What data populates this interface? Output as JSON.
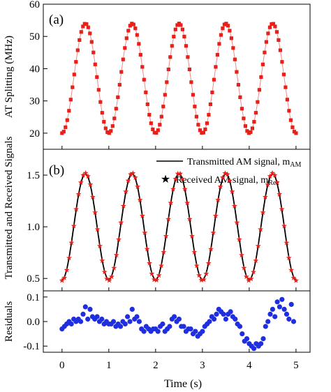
{
  "figure": {
    "x_label": "Time (s)",
    "x_ticks": [
      0,
      1,
      2,
      3,
      4,
      5
    ],
    "x_range": [
      -0.4,
      5.3
    ]
  },
  "chart_data": [
    {
      "type": "scatter",
      "panel_label": "(a)",
      "ylabel": "AT Splitting (MHz)",
      "ylim": [
        15,
        60
      ],
      "yticks": [
        20,
        30,
        40,
        50,
        60
      ],
      "grid": false,
      "marker_color": "#e8201a",
      "line_color": "#f08a86",
      "series": [
        {
          "marker": "square",
          "connected": true,
          "model": "cosine",
          "offset": 37.0,
          "amplitude": 17.0,
          "frequency_hz": 1.0,
          "t_start": 0.0,
          "t_end": 5.0,
          "n_points": 135
        }
      ]
    },
    {
      "type": "line",
      "panel_label": "(b)",
      "ylabel": "Transmitted and Received Signals",
      "ylim": [
        0.38,
        1.75
      ],
      "yticks": [
        0.5,
        1.0,
        1.5
      ],
      "yticklabels": [
        "0.5",
        "1.0",
        "1.5"
      ],
      "grid": false,
      "legend_placement": "top-right",
      "series": [
        {
          "name": "Transmitted AM signal, m",
          "name_sub": "AM",
          "style": "solid-line",
          "color": "#000000",
          "model": "cosine",
          "offset": 1.0,
          "amplitude": 0.51,
          "frequency_hz": 1.0,
          "t_start": 0.0,
          "t_end": 5.0
        },
        {
          "name": "Received AM signal, m",
          "name_sub": "Rec",
          "style": "star-marker",
          "color": "#e8201a",
          "model": "cosine",
          "offset": 1.0,
          "amplitude": 0.52,
          "frequency_hz": 1.0,
          "t_start": 0.0,
          "t_end": 5.0,
          "n_points": 100
        }
      ]
    },
    {
      "type": "scatter",
      "ylabel": "Residuals",
      "ylim": [
        -0.125,
        0.125
      ],
      "yticks": [
        -0.1,
        0.0,
        0.1
      ],
      "yticklabels": [
        "-0.1",
        "0.0",
        "0.1"
      ],
      "grid": false,
      "marker_color": "#1f2fe0",
      "series": [
        {
          "marker": "circle",
          "x": [
            0.0,
            0.05,
            0.1,
            0.15,
            0.2,
            0.25,
            0.3,
            0.35,
            0.4,
            0.45,
            0.5,
            0.55,
            0.6,
            0.65,
            0.7,
            0.75,
            0.8,
            0.85,
            0.9,
            0.95,
            1.0,
            1.05,
            1.1,
            1.15,
            1.2,
            1.25,
            1.3,
            1.35,
            1.4,
            1.45,
            1.5,
            1.55,
            1.6,
            1.65,
            1.7,
            1.75,
            1.8,
            1.85,
            1.9,
            1.95,
            2.0,
            2.05,
            2.1,
            2.15,
            2.2,
            2.25,
            2.3,
            2.35,
            2.4,
            2.45,
            2.5,
            2.55,
            2.6,
            2.65,
            2.7,
            2.75,
            2.8,
            2.85,
            2.9,
            2.95,
            3.0,
            3.05,
            3.1,
            3.15,
            3.2,
            3.25,
            3.3,
            3.35,
            3.4,
            3.45,
            3.5,
            3.55,
            3.6,
            3.65,
            3.7,
            3.75,
            3.8,
            3.85,
            3.9,
            3.95,
            4.0,
            4.05,
            4.1,
            4.15,
            4.2,
            4.25,
            4.3,
            4.35,
            4.4,
            4.45,
            4.5,
            4.55,
            4.6,
            4.65,
            4.7,
            4.75,
            4.8,
            4.85,
            4.9,
            4.95
          ],
          "y": [
            -0.03,
            -0.02,
            -0.01,
            0.0,
            -0.01,
            0.01,
            0.0,
            0.01,
            0.0,
            0.03,
            0.06,
            0.01,
            0.05,
            0.02,
            0.01,
            0.02,
            0.0,
            0.01,
            -0.01,
            0.0,
            -0.01,
            -0.01,
            0.0,
            -0.02,
            -0.01,
            -0.02,
            0.0,
            -0.01,
            0.02,
            0.0,
            0.05,
            0.01,
            0.02,
            0.0,
            -0.03,
            -0.04,
            -0.02,
            -0.03,
            -0.04,
            -0.03,
            -0.03,
            -0.04,
            -0.02,
            -0.01,
            -0.04,
            -0.03,
            -0.02,
            0.01,
            0.02,
            0.0,
            0.01,
            -0.02,
            -0.02,
            -0.04,
            -0.03,
            -0.03,
            -0.05,
            -0.04,
            -0.06,
            -0.05,
            -0.04,
            -0.02,
            -0.01,
            0.0,
            0.02,
            0.01,
            0.03,
            0.05,
            0.04,
            0.03,
            0.01,
            0.03,
            0.04,
            0.02,
            0.01,
            -0.01,
            -0.02,
            -0.05,
            -0.08,
            -0.07,
            -0.09,
            -0.1,
            -0.11,
            -0.09,
            -0.1,
            -0.09,
            -0.07,
            -0.02,
            0.0,
            0.03,
            0.05,
            0.02,
            0.08,
            0.06,
            0.09,
            0.05,
            0.03,
            0.01,
            0.07,
            0.0
          ]
        }
      ]
    }
  ]
}
